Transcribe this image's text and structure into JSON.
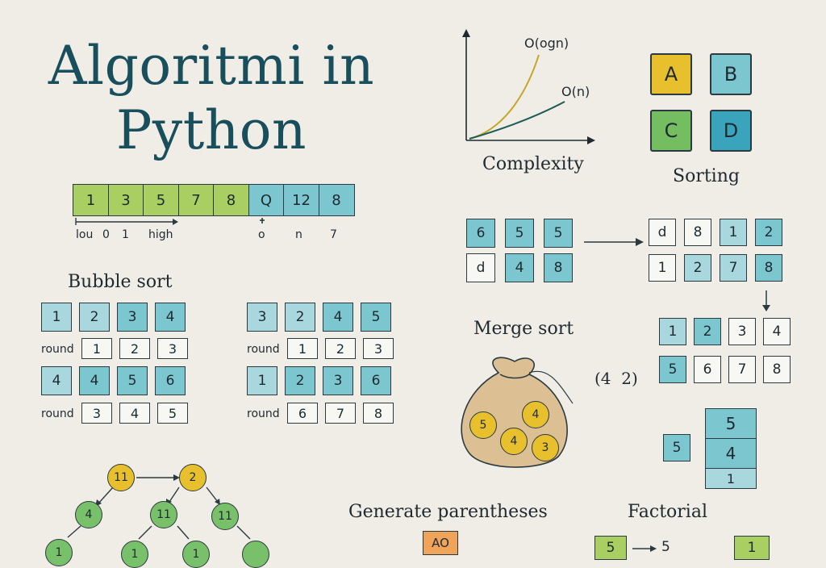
{
  "title": {
    "line1": "Algoritmi in",
    "line2": "Python"
  },
  "binary_array": {
    "cells": [
      {
        "v": "1",
        "c": "g"
      },
      {
        "v": "3",
        "c": "g"
      },
      {
        "v": "5",
        "c": "g"
      },
      {
        "v": "7",
        "c": "g"
      },
      {
        "v": "8",
        "c": "g"
      },
      {
        "v": "Q",
        "c": "t"
      },
      {
        "v": "12",
        "c": "t"
      },
      {
        "v": "8",
        "c": "t"
      }
    ],
    "labels": {
      "low": "lou",
      "zero": "0",
      "one": "1",
      "high": "high",
      "o": "o",
      "n": "n",
      "seven": "7"
    }
  },
  "complexity": {
    "title": "Complexity",
    "curve1": "O(ogn)",
    "curve2": "O(n)"
  },
  "sorting": {
    "title": "Sorting",
    "tiles": [
      "A",
      "B",
      "C",
      "D"
    ]
  },
  "bubble_sort": {
    "title": "Bubble sort",
    "left": {
      "row1": [
        "1",
        "2",
        "3",
        "4"
      ],
      "round1_label": "round",
      "round1": [
        "1",
        "2",
        "3"
      ],
      "row2": [
        "4",
        "4",
        "5",
        "6"
      ],
      "round2_label": "round",
      "round2": [
        "3",
        "4",
        "5"
      ]
    },
    "right": {
      "row1": [
        "3",
        "2",
        "4",
        "5"
      ],
      "round1_label": "round",
      "round1": [
        "1",
        "2",
        "3"
      ],
      "row2": [
        "1",
        "2",
        "3",
        "6"
      ],
      "round2_label": "round",
      "round2": [
        "6",
        "7",
        "8"
      ]
    }
  },
  "merge_top": {
    "left_row1": [
      "6",
      "5",
      "5"
    ],
    "left_row2": [
      "d",
      "4",
      "8"
    ],
    "right_row1": [
      "d",
      "8",
      "1",
      "2"
    ],
    "right_row2": [
      "1",
      "2",
      "7",
      "8"
    ]
  },
  "merge_sort": {
    "title": "Merge sort",
    "bag_coins": [
      "5",
      "4",
      "4",
      "3"
    ],
    "pair_label": "(4  2)",
    "result_row1": [
      "1",
      "2",
      "3",
      "4"
    ],
    "result_row2": [
      "5",
      "6",
      "7",
      "8"
    ],
    "stack_side": "5",
    "stack": [
      "5",
      "4",
      "1"
    ]
  },
  "tree": {
    "nodes": [
      "11",
      "2",
      "4",
      "11",
      "11",
      "1",
      "1",
      "1"
    ]
  },
  "parentheses": {
    "title": "Generate parentheses",
    "box": "AO"
  },
  "factorial": {
    "title": "Factorial",
    "left": "5",
    "arrow_val": "5",
    "right": "1"
  },
  "colors": {
    "green": "#a9cf63",
    "teal": "#7cc6cf",
    "light_teal": "#a9d7de",
    "title_color": "#194e5c",
    "yellow": "#e8c02e"
  }
}
